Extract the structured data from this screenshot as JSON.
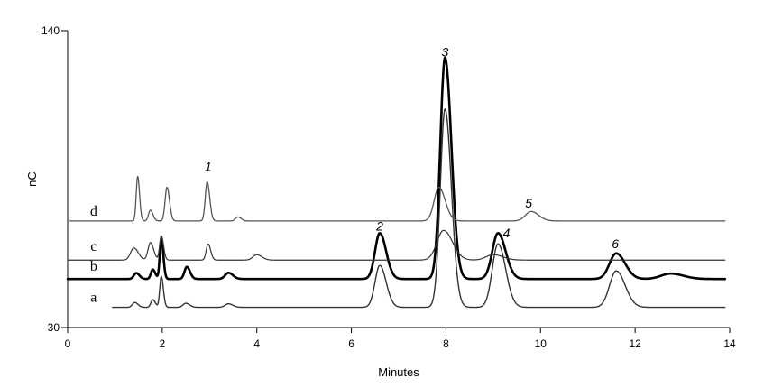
{
  "chart_data": {
    "type": "line",
    "title": "",
    "xlabel": "Minutes",
    "ylabel": "nC",
    "xlim": [
      0,
      14
    ],
    "ylim": [
      30,
      140
    ],
    "x_ticks": [
      "0",
      "2",
      "4",
      "6",
      "8",
      "10",
      "12",
      "14"
    ],
    "y_ticks": [
      "30",
      "140"
    ],
    "grid": false,
    "legend": "none",
    "series": [
      {
        "name": "a",
        "color": "#333333",
        "baseline": 37.5,
        "peaks": [
          {
            "x": 1.42,
            "h": 1.8,
            "w": 0.05
          },
          {
            "x": 1.8,
            "h": 2.8,
            "w": 0.04
          },
          {
            "x": 1.98,
            "h": 11.5,
            "w": 0.032
          },
          {
            "x": 2.5,
            "h": 1.5,
            "w": 0.06
          },
          {
            "x": 3.4,
            "h": 1.3,
            "w": 0.07
          },
          {
            "x": 6.6,
            "h": 15.5,
            "w": 0.1
          },
          {
            "x": 7.98,
            "h": 73.5,
            "w": 0.1
          },
          {
            "x": 9.1,
            "h": 23.5,
            "w": 0.12
          },
          {
            "x": 11.6,
            "h": 13.5,
            "w": 0.14
          }
        ]
      },
      {
        "name": "b",
        "color": "#000000",
        "baseline": 48,
        "peaks": [
          {
            "x": 1.45,
            "h": 2.2,
            "w": 0.05
          },
          {
            "x": 1.8,
            "h": 3.5,
            "w": 0.04
          },
          {
            "x": 1.98,
            "h": 15,
            "w": 0.032
          },
          {
            "x": 2.52,
            "h": 4.5,
            "w": 0.05
          },
          {
            "x": 3.4,
            "h": 2.3,
            "w": 0.07
          },
          {
            "x": 6.6,
            "h": 17,
            "w": 0.1
          },
          {
            "x": 7.98,
            "h": 82,
            "w": 0.1
          },
          {
            "x": 9.1,
            "h": 17,
            "w": 0.12
          },
          {
            "x": 11.6,
            "h": 9.5,
            "w": 0.14
          },
          {
            "x": 12.75,
            "h": 2,
            "w": 0.2
          }
        ]
      },
      {
        "name": "c",
        "color": "#333333",
        "baseline": 55,
        "peaks": [
          {
            "x": 1.4,
            "h": 4.5,
            "w": 0.07
          },
          {
            "x": 1.75,
            "h": 6.5,
            "w": 0.05
          },
          {
            "x": 1.98,
            "h": 9,
            "w": 0.035
          },
          {
            "x": 2.97,
            "h": 6,
            "w": 0.04
          },
          {
            "x": 4.0,
            "h": 2,
            "w": 0.08
          },
          {
            "x": 7.95,
            "h": 11,
            "w": 0.14
          },
          {
            "x": 9.0,
            "h": 2,
            "w": 0.15
          }
        ]
      },
      {
        "name": "d",
        "color": "#555555",
        "baseline": 69.5,
        "peaks": [
          {
            "x": 1.48,
            "h": 16.5,
            "w": 0.03
          },
          {
            "x": 1.75,
            "h": 4,
            "w": 0.04
          },
          {
            "x": 2.1,
            "h": 12.5,
            "w": 0.04
          },
          {
            "x": 2.95,
            "h": 14.5,
            "w": 0.04
          },
          {
            "x": 3.6,
            "h": 1.5,
            "w": 0.05
          },
          {
            "x": 7.85,
            "h": 12.5,
            "w": 0.1
          },
          {
            "x": 9.8,
            "h": 3.5,
            "w": 0.12
          }
        ]
      }
    ],
    "peak_labels": [
      {
        "text": "1",
        "x": 2.97,
        "y": 88
      },
      {
        "text": "2",
        "x": 6.6,
        "y": 66
      },
      {
        "text": "3",
        "x": 7.98,
        "y": 130.5
      },
      {
        "text": "4",
        "x": 9.28,
        "y": 63.5
      },
      {
        "text": "5",
        "x": 9.75,
        "y": 74.5
      },
      {
        "text": "6",
        "x": 11.58,
        "y": 59.5
      }
    ],
    "trace_labels": [
      {
        "text": "a",
        "x": 0.55,
        "y": 39.5
      },
      {
        "text": "b",
        "x": 0.55,
        "y": 51
      },
      {
        "text": "c",
        "x": 0.55,
        "y": 58.5
      },
      {
        "text": "d",
        "x": 0.55,
        "y": 71.5
      }
    ]
  }
}
